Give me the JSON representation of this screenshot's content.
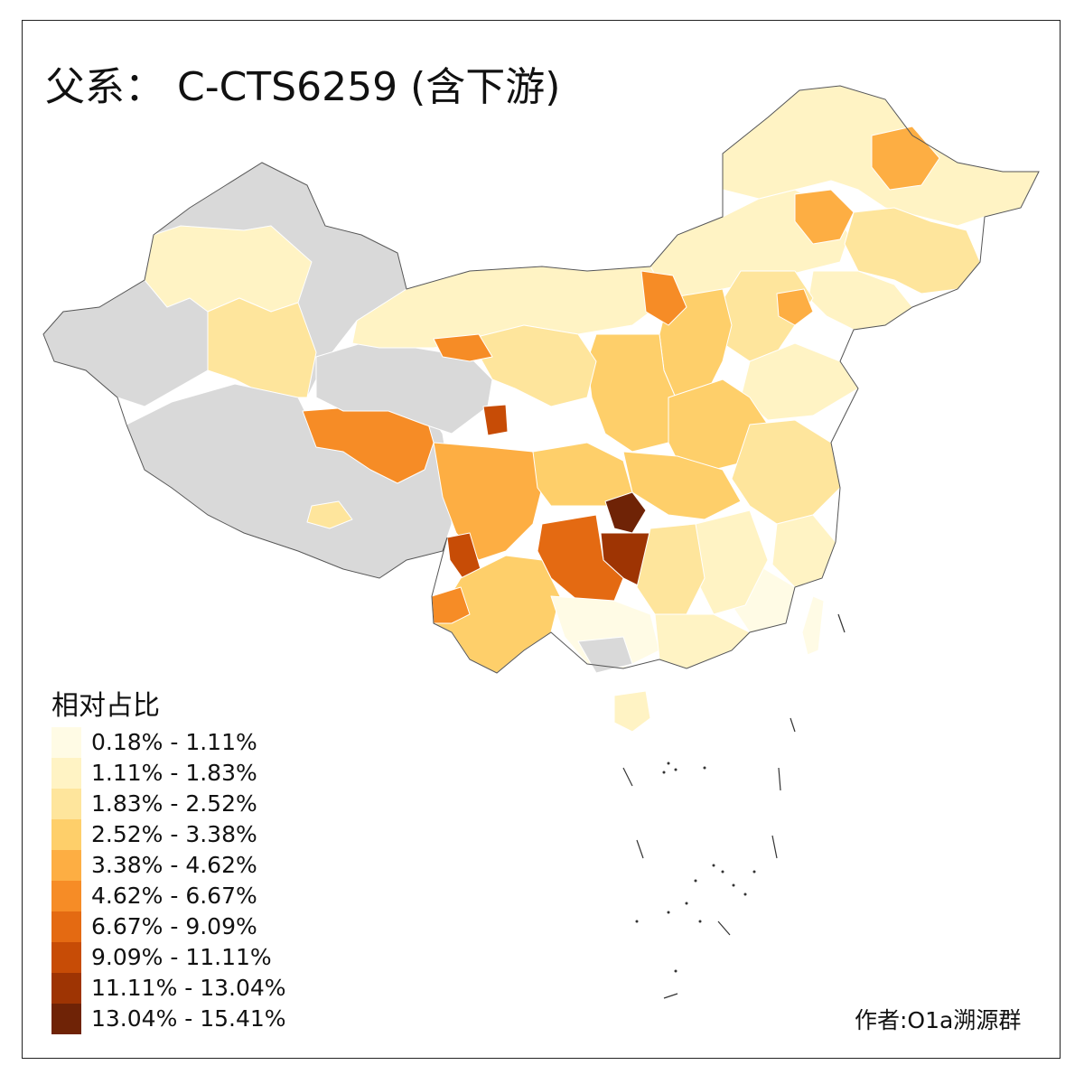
{
  "title": "父系： C-CTS6259 (含下游)",
  "legend": {
    "title": "相对占比",
    "entries": [
      {
        "label": "0.18% - 1.11%",
        "color": "#FFFBE5"
      },
      {
        "label": "1.11% - 1.83%",
        "color": "#FFF3C4"
      },
      {
        "label": "1.83% - 2.52%",
        "color": "#FEE59C"
      },
      {
        "label": "2.52% - 3.38%",
        "color": "#FECF6A"
      },
      {
        "label": "3.38% - 4.62%",
        "color": "#FDAE43"
      },
      {
        "label": "4.62% - 6.67%",
        "color": "#F68C26"
      },
      {
        "label": "6.67% - 9.09%",
        "color": "#E46A12"
      },
      {
        "label": "9.09% - 11.11%",
        "color": "#C74C06"
      },
      {
        "label": "11.11% - 13.04%",
        "color": "#9E3403"
      },
      {
        "label": "13.04% - 15.41%",
        "color": "#6F2306"
      }
    ]
  },
  "no_data_color": "#D9D9D9",
  "author": "作者:O1a溯源群"
}
